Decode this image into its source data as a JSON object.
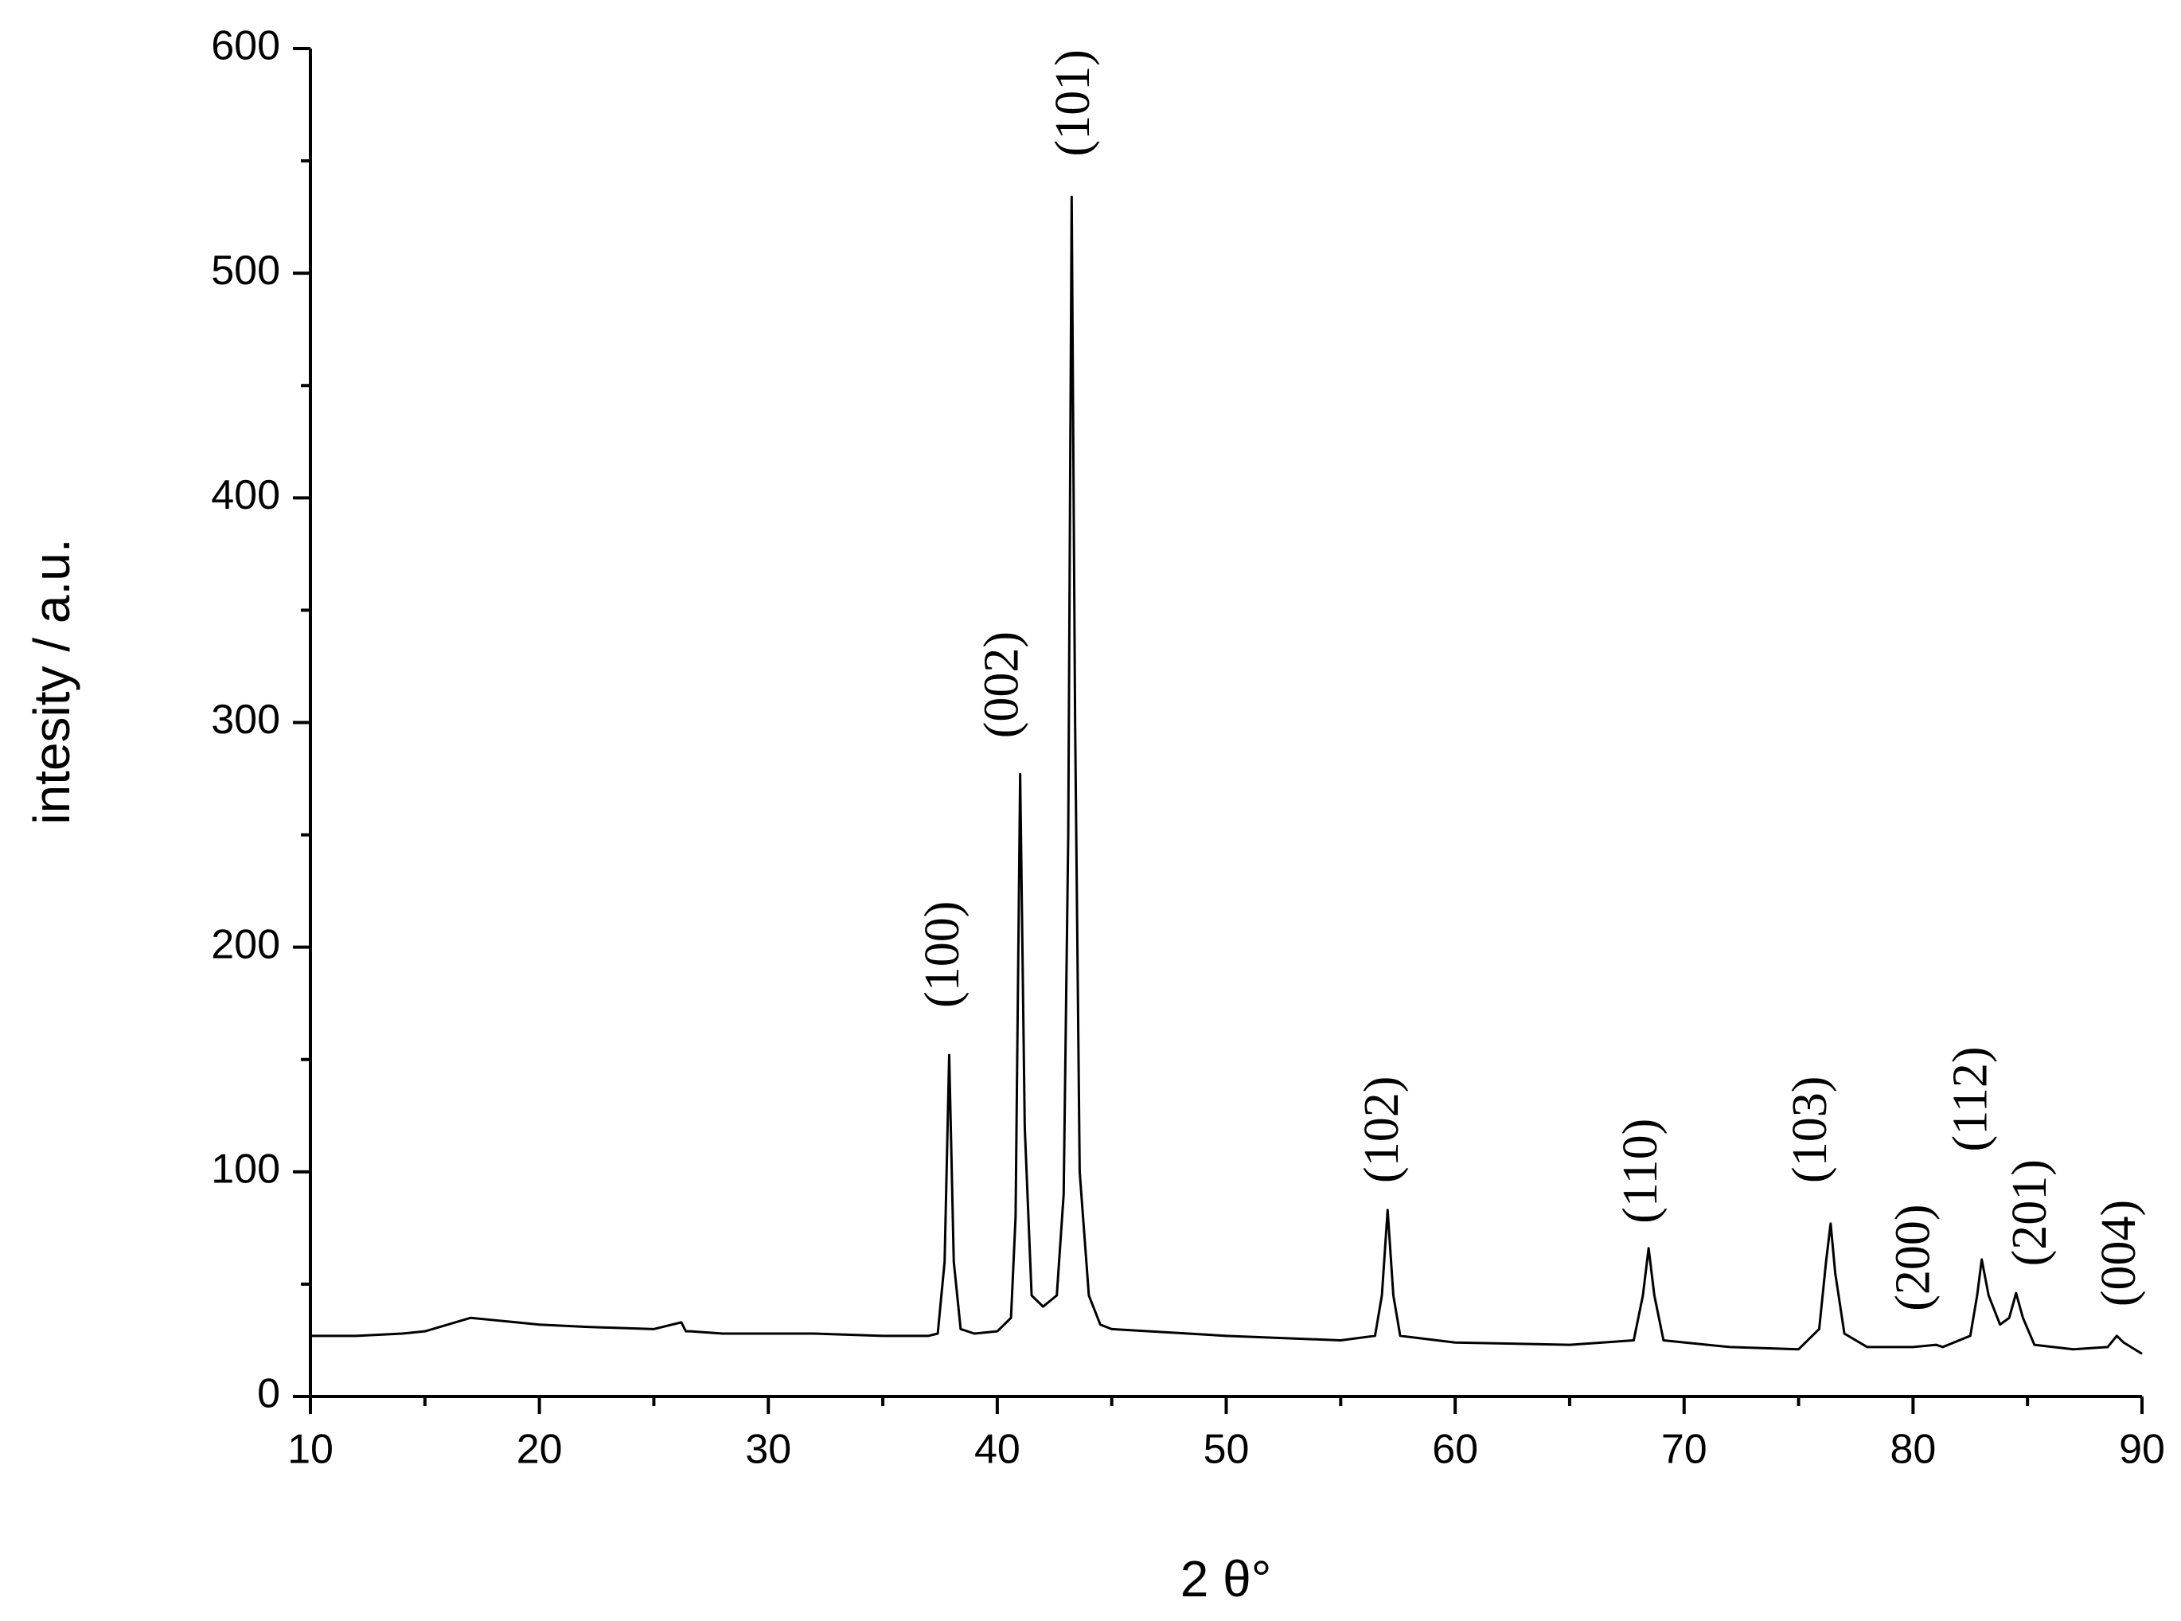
{
  "chart_data": {
    "type": "line",
    "xlabel": "2 θ°",
    "ylabel": "intesity / a.u.",
    "xlim": [
      10,
      90
    ],
    "ylim": [
      0,
      600
    ],
    "xticks": [
      10,
      20,
      30,
      40,
      50,
      60,
      70,
      80,
      90
    ],
    "xminorticks": [
      15,
      25,
      35,
      45,
      55,
      65,
      75,
      85
    ],
    "yticks": [
      0,
      100,
      200,
      300,
      400,
      500,
      600
    ],
    "yminorticks": [
      50,
      150,
      250,
      350,
      450,
      550
    ],
    "grid": false,
    "series": [
      {
        "color": "#000000",
        "x": [
          10,
          12,
          14,
          15,
          16,
          17,
          18,
          20,
          22,
          25,
          26.2,
          26.4,
          26.6,
          28,
          30,
          32,
          35,
          37,
          37.4,
          37.7,
          37.9,
          38.1,
          38.4,
          39,
          40,
          40.6,
          40.8,
          41.0,
          41.2,
          41.5,
          42,
          42.6,
          42.9,
          43.1,
          43.25,
          43.4,
          43.6,
          44,
          44.5,
          45,
          50,
          55,
          56.5,
          56.8,
          57.05,
          57.3,
          57.6,
          60,
          65,
          67.8,
          68.2,
          68.45,
          68.7,
          69.1,
          72,
          75,
          75.9,
          76.2,
          76.4,
          76.6,
          77,
          78,
          80,
          81,
          81.3,
          82.5,
          82.8,
          83.0,
          83.3,
          83.8,
          84.2,
          84.5,
          84.8,
          85.3,
          87,
          88.5,
          88.9,
          89.2,
          90
        ],
        "values": [
          27,
          27,
          28,
          29,
          32,
          35,
          34,
          32,
          31,
          30,
          33,
          29,
          29,
          28,
          28,
          28,
          27,
          27,
          28,
          60,
          152,
          60,
          30,
          28,
          29,
          35,
          80,
          277,
          120,
          45,
          40,
          45,
          90,
          250,
          534,
          300,
          100,
          45,
          32,
          30,
          27,
          25,
          27,
          45,
          83,
          45,
          27,
          24,
          23,
          25,
          45,
          66,
          45,
          25,
          22,
          21,
          30,
          60,
          77,
          55,
          28,
          22,
          22,
          23,
          22,
          27,
          45,
          61,
          45,
          32,
          35,
          46,
          35,
          23,
          21,
          22,
          27,
          24,
          19
        ]
      }
    ],
    "annotations": [
      {
        "text": "(100)",
        "x": 37.8,
        "y": 173
      },
      {
        "text": "(002)",
        "x": 40.4,
        "y": 293
      },
      {
        "text": "(101)",
        "x": 43.5,
        "y": 552
      },
      {
        "text": "(102)",
        "x": 57.0,
        "y": 95
      },
      {
        "text": "(110)",
        "x": 68.3,
        "y": 77
      },
      {
        "text": "(103)",
        "x": 75.7,
        "y": 95
      },
      {
        "text": "(200)",
        "x": 80.2,
        "y": 38
      },
      {
        "text": "(112)",
        "x": 82.7,
        "y": 109
      },
      {
        "text": "(201)",
        "x": 85.3,
        "y": 58
      },
      {
        "text": "(004)",
        "x": 89.2,
        "y": 40
      }
    ]
  }
}
